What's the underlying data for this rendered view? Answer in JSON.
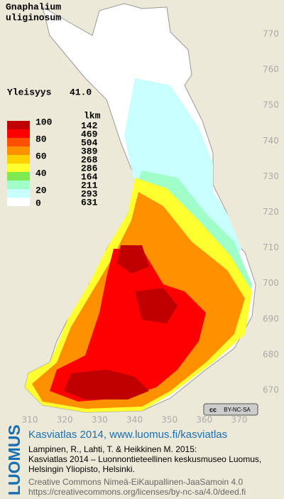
{
  "title": [
    "Gnaphalium",
    "uliginosum"
  ],
  "frequency": {
    "label": "Yleisyys",
    "value": "41.0"
  },
  "legend": {
    "unit": "lkm",
    "levels": [
      "100",
      "80",
      "60",
      "40",
      "20",
      "0"
    ],
    "classes": [
      {
        "count": "142",
        "color": "#c00000"
      },
      {
        "count": "469",
        "color": "#ff0000"
      },
      {
        "count": "504",
        "color": "#ff5000"
      },
      {
        "count": "389",
        "color": "#ff9000"
      },
      {
        "count": "268",
        "color": "#ffd000"
      },
      {
        "count": "286",
        "color": "#ffff30"
      },
      {
        "count": "164",
        "color": "#80e850"
      },
      {
        "count": "211",
        "color": "#a0ffc8"
      },
      {
        "count": "293",
        "color": "#c8ffff"
      },
      {
        "count": "631",
        "color": "#ffffff"
      }
    ]
  },
  "axes": {
    "yticks": [
      770,
      760,
      750,
      740,
      730,
      720,
      710,
      700,
      690,
      680,
      670
    ],
    "xticks": [
      310,
      320,
      330,
      340,
      350,
      360,
      370
    ]
  },
  "license_badge": {
    "icon": "cc",
    "text": "BY-NC-SA"
  },
  "footer": {
    "brand": "LUOMUS",
    "link": "Kasviatlas 2014, www.luomus.fi/kasviatlas",
    "citation": [
      "Lampinen, R., Lahti, T. & Heikkinen M. 2015:",
      "Kasviatlas 2014 – Luonnontieteellinen keskusmuseo Luomus,",
      "Helsingin Yliopisto, Helsinki."
    ],
    "license": [
      "Creative Commons Nimeä-EiKaupallinen-JaaSamoin 4.0",
      "https://creativecommons.org/licenses/by-nc-sa/4.0/deed.fi"
    ]
  }
}
